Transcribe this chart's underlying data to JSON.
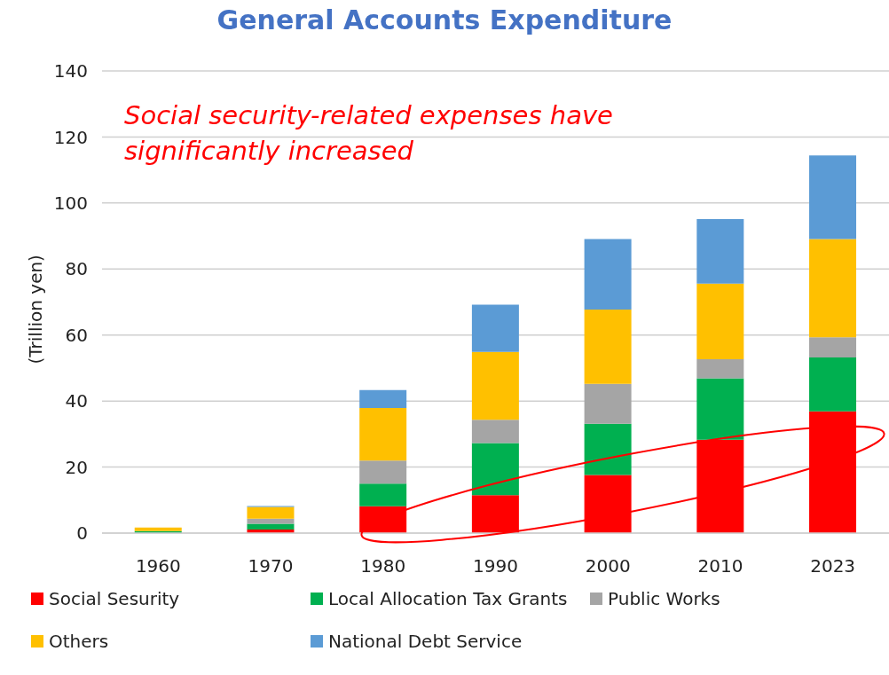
{
  "chart_data": {
    "type": "bar",
    "title": "General Accounts Expenditure",
    "ylabel": "(Trillion yen)",
    "annotations": [
      "Social security-related expenses have significantly increased"
    ],
    "categories": [
      "1960",
      "1970",
      "1980",
      "1990",
      "2000",
      "2010",
      "2023"
    ],
    "stacked": true,
    "series": [
      {
        "name": "Social Sesurity",
        "color": "#ff0000",
        "values": [
          null,
          1.1,
          8.1,
          11.5,
          17.6,
          28.3,
          36.9
        ]
      },
      {
        "name": "Local Allocation Tax Grants",
        "color": "#00b050",
        "values": [
          0.6,
          1.7,
          6.9,
          15.8,
          15.5,
          18.6,
          16.3
        ]
      },
      {
        "name": "Public Works",
        "color": "#a5a5a5",
        "values": [
          null,
          1.6,
          7.0,
          7.0,
          12.1,
          5.8,
          6.1
        ]
      },
      {
        "name": "Others",
        "color": "#ffc000",
        "values": [
          1.1,
          3.5,
          15.9,
          20.6,
          22.5,
          22.9,
          29.8
        ]
      },
      {
        "name": "National Debt Service",
        "color": "#5b9bd5",
        "values": [
          null,
          0.3,
          5.4,
          14.3,
          21.4,
          19.5,
          25.3
        ]
      }
    ],
    "ylim": [
      0,
      140
    ],
    "yticks": [
      0,
      20,
      40,
      60,
      80,
      100,
      120,
      140
    ],
    "grid": "y",
    "legend": "bottom"
  }
}
